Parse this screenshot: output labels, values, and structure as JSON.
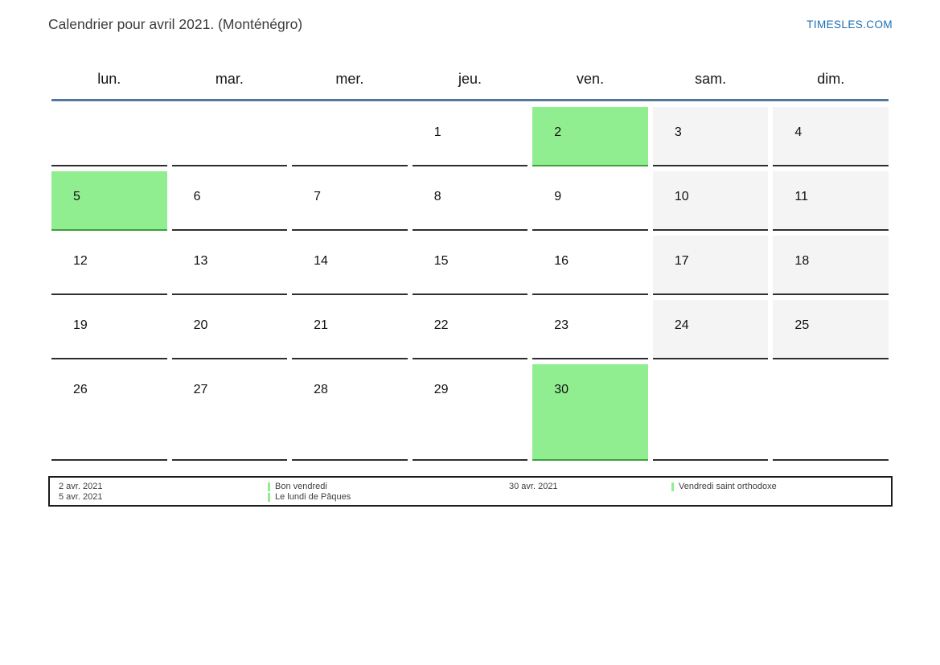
{
  "page": {
    "title": "Calendrier pour avril 2021. (Monténégro)",
    "brand": "TIMESLES.COM"
  },
  "calendar": {
    "weekday_headers": [
      "lun.",
      "mar.",
      "mer.",
      "jeu.",
      "ven.",
      "sam.",
      "dim."
    ],
    "weeks": [
      [
        {
          "day": "",
          "type": "empty"
        },
        {
          "day": "",
          "type": "empty"
        },
        {
          "day": "",
          "type": "empty"
        },
        {
          "day": "1",
          "type": "normal"
        },
        {
          "day": "2",
          "type": "holiday"
        },
        {
          "day": "3",
          "type": "weekend"
        },
        {
          "day": "4",
          "type": "weekend"
        }
      ],
      [
        {
          "day": "5",
          "type": "holiday"
        },
        {
          "day": "6",
          "type": "normal"
        },
        {
          "day": "7",
          "type": "normal"
        },
        {
          "day": "8",
          "type": "normal"
        },
        {
          "day": "9",
          "type": "normal"
        },
        {
          "day": "10",
          "type": "weekend"
        },
        {
          "day": "11",
          "type": "weekend"
        }
      ],
      [
        {
          "day": "12",
          "type": "normal"
        },
        {
          "day": "13",
          "type": "normal"
        },
        {
          "day": "14",
          "type": "normal"
        },
        {
          "day": "15",
          "type": "normal"
        },
        {
          "day": "16",
          "type": "normal"
        },
        {
          "day": "17",
          "type": "weekend"
        },
        {
          "day": "18",
          "type": "weekend"
        }
      ],
      [
        {
          "day": "19",
          "type": "normal"
        },
        {
          "day": "20",
          "type": "normal"
        },
        {
          "day": "21",
          "type": "normal"
        },
        {
          "day": "22",
          "type": "normal"
        },
        {
          "day": "23",
          "type": "normal"
        },
        {
          "day": "24",
          "type": "weekend"
        },
        {
          "day": "25",
          "type": "weekend"
        }
      ],
      [
        {
          "day": "26",
          "type": "normal"
        },
        {
          "day": "27",
          "type": "normal"
        },
        {
          "day": "28",
          "type": "normal"
        },
        {
          "day": "29",
          "type": "normal"
        },
        {
          "day": "30",
          "type": "holiday"
        },
        {
          "day": "",
          "type": "empty"
        },
        {
          "day": "",
          "type": "empty"
        }
      ]
    ]
  },
  "legend": {
    "groups": [
      {
        "dates": [
          "2 avr. 2021",
          "5 avr. 2021"
        ],
        "labels": [
          "Bon vendredi",
          "Le lundi de Pâques"
        ]
      },
      {
        "dates": [
          "30 avr. 2021"
        ],
        "labels": [
          "Vendredi saint orthodoxe"
        ]
      }
    ]
  },
  "colors": {
    "holiday_green": "#90ee90",
    "holiday_border_green": "#3aa23a",
    "weekend_gray": "#f4f4f4",
    "header_line_blue": "#54779e",
    "brand_blue": "#1c6eb4",
    "cell_border_dark": "#2e2e2e"
  }
}
